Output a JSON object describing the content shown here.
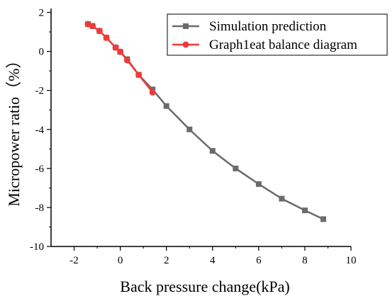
{
  "chart_data": {
    "type": "line",
    "title": "",
    "xlabel": "Back pressure change(kPa)",
    "ylabel": "Micropower ratio（%）",
    "xlim": [
      -3,
      10
    ],
    "ylim": [
      -10,
      2.2
    ],
    "xticks": [
      -2,
      0,
      2,
      4,
      6,
      8,
      10
    ],
    "yticks": [
      2,
      0,
      -2,
      -4,
      -6,
      -8,
      -10
    ],
    "xtick_labels": [
      "-2",
      "0",
      "2",
      "4",
      "6",
      "8",
      "10"
    ],
    "ytick_labels": [
      "2",
      "0",
      "-2",
      "-4",
      "-6",
      "-8",
      "-10"
    ],
    "grid": false,
    "legend_position": "top-right",
    "series": [
      {
        "name": "Simulation prediction",
        "color": "#6b6b6b",
        "marker": "square",
        "x": [
          -1.4,
          -1.2,
          -0.9,
          -0.6,
          -0.2,
          0.0,
          0.3,
          0.8,
          1.4,
          2.0,
          3.0,
          4.0,
          5.0,
          6.0,
          7.0,
          8.0,
          8.8
        ],
        "y": [
          1.4,
          1.3,
          1.05,
          0.7,
          0.2,
          -0.02,
          -0.4,
          -1.2,
          -1.95,
          -2.8,
          -4.0,
          -5.1,
          -6.0,
          -6.8,
          -7.55,
          -8.15,
          -8.6
        ]
      },
      {
        "name": "Graph1eat balance diagram",
        "color": "#ef3b3b",
        "marker": "circle",
        "x": [
          -1.4,
          -1.2,
          -0.9,
          -0.6,
          -0.2,
          0.0,
          0.3,
          0.8,
          1.4
        ],
        "y": [
          1.4,
          1.3,
          1.05,
          0.7,
          0.2,
          -0.02,
          -0.45,
          -1.2,
          -2.1
        ]
      }
    ]
  }
}
